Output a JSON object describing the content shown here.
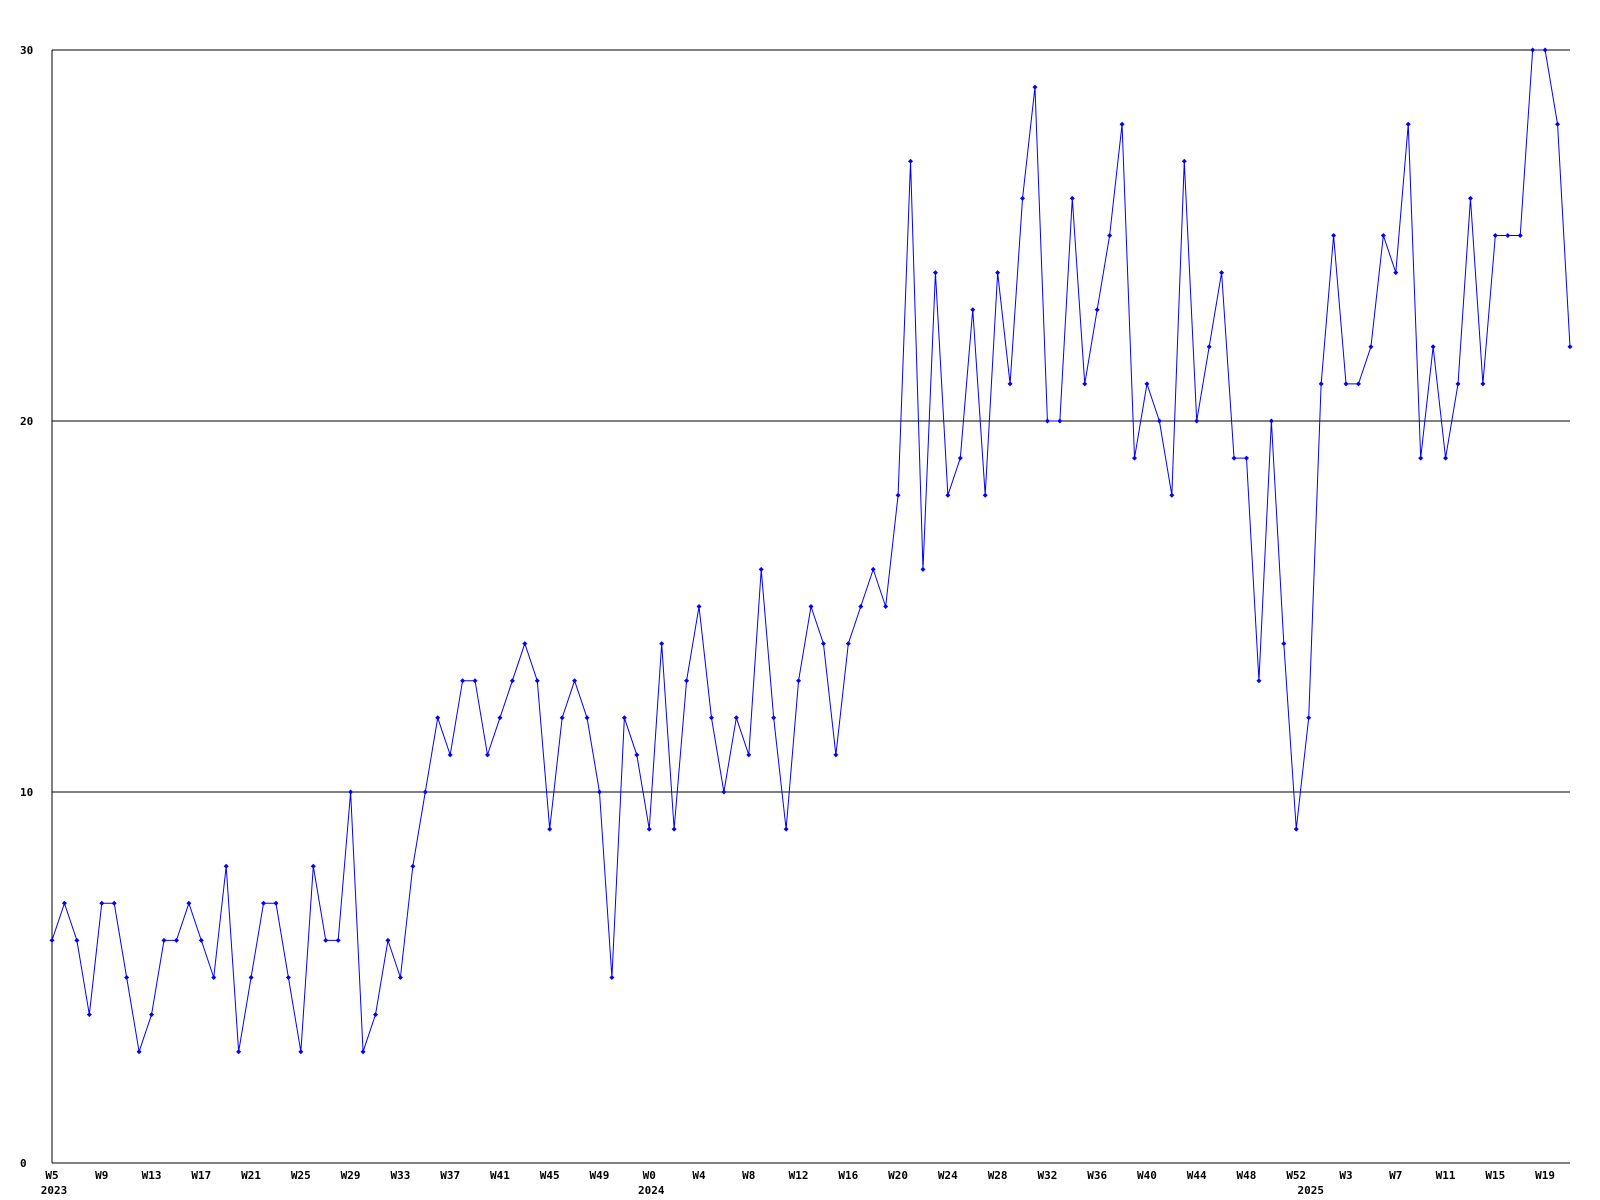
{
  "chart_data": {
    "type": "line",
    "color": "#0000ff",
    "grid": true,
    "ylim": [
      0,
      30
    ],
    "yticks": [
      0,
      10,
      20,
      30
    ],
    "categories": [
      "W5",
      null,
      null,
      null,
      "W9",
      null,
      null,
      null,
      "W13",
      null,
      null,
      null,
      "W17",
      null,
      null,
      null,
      "W21",
      null,
      null,
      null,
      "W25",
      null,
      null,
      null,
      "W29",
      null,
      null,
      null,
      "W33",
      null,
      null,
      null,
      "W37",
      null,
      null,
      null,
      "W41",
      null,
      null,
      null,
      "W45",
      null,
      null,
      null,
      "W49",
      null,
      null,
      null,
      "W0",
      null,
      null,
      null,
      "W4",
      null,
      null,
      null,
      "W8",
      null,
      null,
      null,
      "W12",
      null,
      null,
      null,
      "W16",
      null,
      null,
      null,
      "W20",
      null,
      null,
      null,
      "W24",
      null,
      null,
      null,
      "W28",
      null,
      null,
      null,
      "W32",
      null,
      null,
      null,
      "W36",
      null,
      null,
      null,
      "W40",
      null,
      null,
      null,
      "W44",
      null,
      null,
      null,
      "W48",
      null,
      null,
      null,
      "W52",
      null,
      null,
      null,
      "W3",
      null,
      null,
      null,
      "W7",
      null,
      null,
      null,
      "W11",
      null,
      null,
      null,
      "W15",
      null,
      null,
      null,
      "W19",
      null,
      null
    ],
    "years": [
      "2023",
      null,
      null,
      null,
      null,
      null,
      null,
      null,
      null,
      null,
      null,
      null,
      null,
      null,
      null,
      null,
      null,
      null,
      null,
      null,
      null,
      null,
      null,
      null,
      null,
      null,
      null,
      null,
      null,
      null,
      null,
      null,
      null,
      null,
      null,
      null,
      null,
      null,
      null,
      null,
      null,
      null,
      null,
      null,
      null,
      null,
      null,
      null,
      "2024",
      null,
      null,
      null,
      null,
      null,
      null,
      null,
      null,
      null,
      null,
      null,
      null,
      null,
      null,
      null,
      null,
      null,
      null,
      null,
      null,
      null,
      null,
      null,
      null,
      null,
      null,
      null,
      null,
      null,
      null,
      null,
      null,
      null,
      null,
      null,
      null,
      null,
      null,
      null,
      null,
      null,
      null,
      null,
      null,
      null,
      null,
      null,
      null,
      null,
      null,
      null,
      null,
      "2025",
      null,
      null,
      null,
      null,
      null,
      null,
      null,
      null,
      null,
      null,
      null,
      null,
      null,
      null,
      null,
      null,
      null,
      null,
      null,
      null,
      null
    ],
    "values": [
      6,
      7,
      6,
      4,
      7,
      7,
      5,
      3,
      4,
      6,
      6,
      7,
      6,
      5,
      8,
      3,
      5,
      7,
      7,
      5,
      3,
      8,
      6,
      6,
      10,
      3,
      4,
      6,
      5,
      8,
      10,
      12,
      11,
      13,
      13,
      11,
      12,
      13,
      14,
      13,
      9,
      12,
      13,
      12,
      10,
      5,
      12,
      11,
      9,
      14,
      9,
      13,
      15,
      12,
      10,
      12,
      11,
      16,
      12,
      9,
      13,
      15,
      14,
      11,
      14,
      15,
      16,
      15,
      18,
      27,
      16,
      24,
      18,
      19,
      23,
      18,
      24,
      21,
      26,
      29,
      20,
      20,
      26,
      21,
      23,
      25,
      28,
      19,
      21,
      20,
      18,
      27,
      20,
      22,
      24,
      19,
      19,
      13,
      20,
      14,
      9,
      12,
      21,
      25,
      21,
      21,
      22,
      25,
      24,
      28,
      19,
      22,
      19,
      21,
      26,
      21,
      25,
      25,
      25,
      30,
      30,
      28,
      22
    ]
  }
}
